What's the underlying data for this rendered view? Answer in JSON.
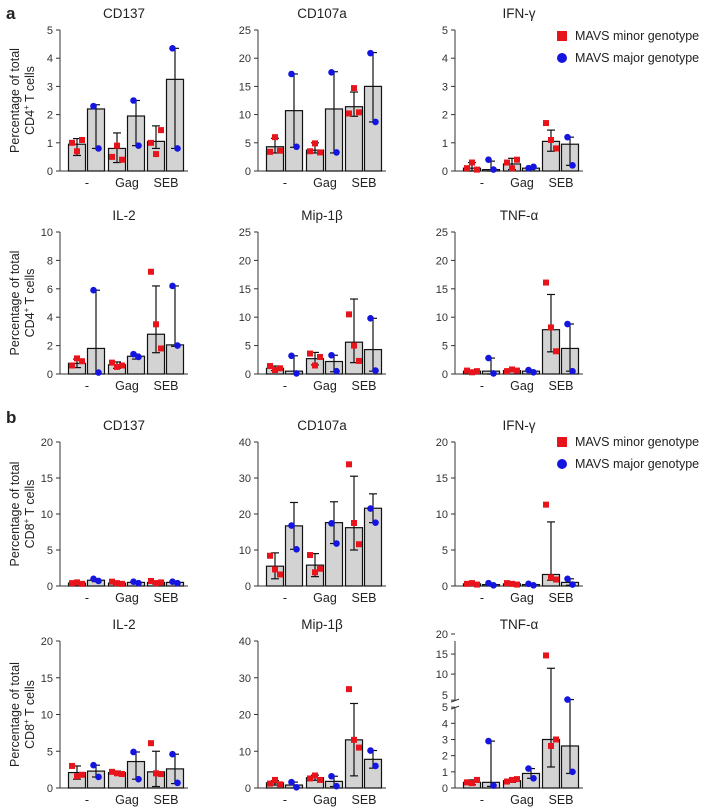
{
  "panel_labels": [
    "a",
    "b"
  ],
  "legend": {
    "minor": "MAVS minor genotype",
    "major": "MAVS major genotype"
  },
  "colors": {
    "minor": "#e8141b",
    "major": "#1416e0",
    "bar": "#d3d3d3",
    "axis": "#333333"
  },
  "chart_data": [
    {
      "type": "bar",
      "section": "a",
      "title": "CD137",
      "ylabel": "Percentage of total CD4+ T cells",
      "categories": [
        "-",
        "Gag",
        "SEB"
      ],
      "ylim": [
        0,
        5
      ],
      "yticks": [
        0,
        1,
        2,
        3,
        4,
        5
      ],
      "series": [
        {
          "name": "MAVS minor genotype",
          "values": [
            0.95,
            0.8,
            1.05
          ],
          "err_hi": [
            1.15,
            1.35,
            1.6
          ],
          "err_lo": [
            0.55,
            0.3,
            0.8
          ],
          "points": [
            [
              1.0,
              0.7,
              1.1
            ],
            [
              0.5,
              0.9,
              0.4
            ],
            [
              1.0,
              0.6,
              1.45
            ]
          ]
        },
        {
          "name": "MAVS major genotype",
          "values": [
            2.2,
            1.95,
            3.25
          ],
          "err_hi": [
            2.35,
            2.5,
            4.35
          ],
          "err_lo": [
            0.8,
            0.9,
            0.8
          ],
          "points": [
            [
              2.3,
              0.8
            ],
            [
              2.5,
              0.9
            ],
            [
              4.35,
              0.8
            ]
          ]
        }
      ]
    },
    {
      "type": "bar",
      "section": "a",
      "title": "CD107a",
      "categories": [
        "-",
        "Gag",
        "SEB"
      ],
      "ylim": [
        0,
        25
      ],
      "yticks": [
        0,
        5,
        10,
        15,
        20,
        25
      ],
      "series": [
        {
          "name": "MAVS minor genotype",
          "values": [
            4.3,
            3.7,
            11.4
          ],
          "err_hi": [
            5.8,
            5.0,
            14.0
          ],
          "err_lo": [
            3.2,
            3.2,
            9.7
          ],
          "points": [
            [
              3.4,
              6.0,
              3.6
            ],
            [
              3.5,
              4.9,
              3.3
            ],
            [
              10.2,
              14.7,
              10.4
            ]
          ]
        },
        {
          "name": "MAVS major genotype",
          "values": [
            10.7,
            11.0,
            15.0
          ],
          "err_hi": [
            17.2,
            17.6,
            21.0
          ],
          "err_lo": [
            4.2,
            3.2,
            8.7
          ],
          "points": [
            [
              17.2,
              4.3
            ],
            [
              17.5,
              3.3
            ],
            [
              20.9,
              8.7
            ]
          ]
        }
      ]
    },
    {
      "type": "bar",
      "section": "a",
      "title": "IFN-γ",
      "categories": [
        "-",
        "Gag",
        "SEB"
      ],
      "ylim": [
        0,
        5
      ],
      "yticks": [
        0,
        1,
        2,
        3,
        4,
        5
      ],
      "series": [
        {
          "name": "MAVS minor genotype",
          "values": [
            0.1,
            0.25,
            1.05
          ],
          "err_hi": [
            0.3,
            0.45,
            1.45
          ],
          "err_lo": [
            0.0,
            0.05,
            0.7
          ],
          "points": [
            [
              0.1,
              0.3,
              0.05
            ],
            [
              0.3,
              0.1,
              0.4
            ],
            [
              1.7,
              1.1,
              0.8
            ]
          ]
        },
        {
          "name": "MAVS major genotype",
          "values": [
            0.05,
            0.1,
            0.95
          ],
          "err_hi": [
            0.35,
            0.15,
            1.2
          ],
          "err_lo": [
            0.0,
            0.05,
            0.2
          ],
          "points": [
            [
              0.4,
              0.05
            ],
            [
              0.1,
              0.15
            ],
            [
              1.2,
              0.2
            ]
          ]
        }
      ]
    },
    {
      "type": "bar",
      "section": "a",
      "title": "IL-2",
      "ylabel": "Percentage of total CD4+ T cells",
      "categories": [
        "-",
        "Gag",
        "SEB"
      ],
      "ylim": [
        0,
        10
      ],
      "yticks": [
        0,
        2,
        4,
        6,
        8,
        10
      ],
      "series": [
        {
          "name": "MAVS minor genotype",
          "values": [
            0.75,
            0.65,
            2.8
          ],
          "err_hi": [
            1.05,
            0.85,
            6.2
          ],
          "err_lo": [
            0.45,
            0.4,
            1.5
          ],
          "points": [
            [
              0.6,
              1.1,
              0.9
            ],
            [
              0.8,
              0.5,
              0.6
            ],
            [
              7.2,
              3.5,
              1.8
            ]
          ]
        },
        {
          "name": "MAVS major genotype",
          "values": [
            1.8,
            1.25,
            2.05
          ],
          "err_hi": [
            5.9,
            1.4,
            6.2
          ],
          "err_lo": [
            0.0,
            1.05,
            1.95
          ],
          "points": [
            [
              5.9,
              0.1
            ],
            [
              1.4,
              1.2
            ],
            [
              6.2,
              2.0
            ]
          ]
        }
      ]
    },
    {
      "type": "bar",
      "section": "a",
      "title": "Mip-1β",
      "categories": [
        "-",
        "Gag",
        "SEB"
      ],
      "ylim": [
        0,
        25
      ],
      "yticks": [
        0,
        5,
        10,
        15,
        20,
        25
      ],
      "series": [
        {
          "name": "MAVS minor genotype",
          "values": [
            1.0,
            2.7,
            5.6
          ],
          "err_hi": [
            1.4,
            3.8,
            13.2
          ],
          "err_lo": [
            0.6,
            1.6,
            2.0
          ],
          "points": [
            [
              1.4,
              0.7,
              1.0
            ],
            [
              3.6,
              1.5,
              3.0
            ],
            [
              10.5,
              5.0,
              2.3
            ]
          ]
        },
        {
          "name": "MAVS major genotype",
          "values": [
            0.5,
            2.2,
            4.3
          ],
          "err_hi": [
            3.2,
            3.3,
            9.8
          ],
          "err_lo": [
            0.0,
            0.4,
            0.5
          ],
          "points": [
            [
              3.2,
              0.1
            ],
            [
              3.3,
              0.5
            ],
            [
              9.8,
              0.6
            ]
          ]
        }
      ]
    },
    {
      "type": "bar",
      "section": "a",
      "title": "TNF-α",
      "categories": [
        "-",
        "Gag",
        "SEB"
      ],
      "ylim": [
        0,
        25
      ],
      "yticks": [
        0,
        5,
        10,
        15,
        20,
        25
      ],
      "series": [
        {
          "name": "MAVS minor genotype",
          "values": [
            0.5,
            0.6,
            7.8
          ],
          "err_hi": [
            0.7,
            0.8,
            14.0
          ],
          "err_lo": [
            0.3,
            0.4,
            3.9
          ],
          "points": [
            [
              0.6,
              0.3,
              0.5
            ],
            [
              0.5,
              0.8,
              0.6
            ],
            [
              16.1,
              8.2,
              4.0
            ]
          ]
        },
        {
          "name": "MAVS major genotype",
          "values": [
            0.5,
            0.5,
            4.5
          ],
          "err_hi": [
            2.8,
            0.7,
            8.8
          ],
          "err_lo": [
            0.0,
            0.3,
            0.5
          ],
          "points": [
            [
              2.8,
              0.1
            ],
            [
              0.7,
              0.3
            ],
            [
              8.8,
              0.5
            ]
          ]
        }
      ]
    },
    {
      "type": "bar",
      "section": "b",
      "title": "CD137",
      "ylabel": "Percentage of total CD8+ T cells",
      "categories": [
        "-",
        "Gag",
        "SEB"
      ],
      "ylim": [
        0,
        20
      ],
      "yticks": [
        0,
        5,
        10,
        15,
        20
      ],
      "series": [
        {
          "name": "MAVS minor genotype",
          "values": [
            0.4,
            0.4,
            0.5
          ],
          "err_hi": [
            0.6,
            0.6,
            0.7
          ],
          "err_lo": [
            0.2,
            0.2,
            0.3
          ],
          "points": [
            [
              0.4,
              0.5,
              0.3
            ],
            [
              0.6,
              0.4,
              0.3
            ],
            [
              0.7,
              0.4,
              0.5
            ]
          ]
        },
        {
          "name": "MAVS major genotype",
          "values": [
            0.8,
            0.5,
            0.5
          ],
          "err_hi": [
            1.0,
            0.6,
            0.6
          ],
          "err_lo": [
            0.6,
            0.4,
            0.4
          ],
          "points": [
            [
              1.0,
              0.7
            ],
            [
              0.6,
              0.4
            ],
            [
              0.6,
              0.4
            ]
          ]
        }
      ]
    },
    {
      "type": "bar",
      "section": "b",
      "title": "CD107a",
      "categories": [
        "-",
        "Gag",
        "SEB"
      ],
      "ylim": [
        0,
        40
      ],
      "yticks": [
        0,
        10,
        20,
        30,
        40
      ],
      "series": [
        {
          "name": "MAVS minor genotype",
          "values": [
            5.5,
            5.8,
            16.2
          ],
          "err_hi": [
            9.2,
            9.0,
            30.5
          ],
          "err_lo": [
            2.0,
            2.6,
            10.0
          ],
          "points": [
            [
              8.4,
              4.6,
              3.2
            ],
            [
              8.6,
              3.8,
              4.8
            ],
            [
              33.8,
              17.5,
              11.6
            ]
          ]
        },
        {
          "name": "MAVS major genotype",
          "values": [
            16.7,
            17.6,
            21.6
          ],
          "err_hi": [
            23.2,
            23.4,
            25.6
          ],
          "err_lo": [
            10.2,
            11.8,
            17.6
          ],
          "points": [
            [
              16.8,
              10.2
            ],
            [
              17.4,
              11.8
            ],
            [
              21.5,
              17.6
            ]
          ]
        }
      ]
    },
    {
      "type": "bar",
      "section": "b",
      "title": "IFN-γ",
      "categories": [
        "-",
        "Gag",
        "SEB"
      ],
      "ylim": [
        0,
        20
      ],
      "yticks": [
        0,
        5,
        10,
        15,
        20
      ],
      "series": [
        {
          "name": "MAVS minor genotype",
          "values": [
            0.3,
            0.3,
            1.6
          ],
          "err_hi": [
            0.4,
            0.4,
            8.9
          ],
          "err_lo": [
            0.2,
            0.2,
            0.8
          ],
          "points": [
            [
              0.3,
              0.4,
              0.2
            ],
            [
              0.4,
              0.3,
              0.2
            ],
            [
              11.3,
              1.2,
              0.9
            ]
          ]
        },
        {
          "name": "MAVS major genotype",
          "values": [
            0.2,
            0.2,
            0.5
          ],
          "err_hi": [
            0.4,
            0.3,
            1.0
          ],
          "err_lo": [
            0.0,
            0.1,
            0.1
          ],
          "points": [
            [
              0.4,
              0.1
            ],
            [
              0.3,
              0.1
            ],
            [
              1.0,
              0.2
            ]
          ]
        }
      ]
    },
    {
      "type": "bar",
      "section": "b",
      "title": "IL-2",
      "ylabel": "Percentage of total CD8+ T cells",
      "categories": [
        "-",
        "Gag",
        "SEB"
      ],
      "ylim": [
        0,
        20
      ],
      "yticks": [
        0,
        5,
        10,
        15,
        20
      ],
      "series": [
        {
          "name": "MAVS minor genotype",
          "values": [
            2.1,
            2.1,
            2.2
          ],
          "err_hi": [
            3.0,
            2.3,
            5.0
          ],
          "err_lo": [
            1.2,
            1.9,
            0.2
          ],
          "points": [
            [
              3.0,
              1.6,
              1.8
            ],
            [
              2.2,
              2.0,
              1.9
            ],
            [
              6.1,
              2.0,
              1.9
            ]
          ]
        },
        {
          "name": "MAVS major genotype",
          "values": [
            2.3,
            3.6,
            2.6
          ],
          "err_hi": [
            3.1,
            4.9,
            4.6
          ],
          "err_lo": [
            1.5,
            1.2,
            0.6
          ],
          "points": [
            [
              3.1,
              1.5
            ],
            [
              4.9,
              1.2
            ],
            [
              4.6,
              0.7
            ]
          ]
        }
      ]
    },
    {
      "type": "bar",
      "section": "b",
      "title": "Mip-1β",
      "categories": [
        "-",
        "Gag",
        "SEB"
      ],
      "ylim": [
        0,
        40
      ],
      "yticks": [
        0,
        10,
        20,
        30,
        40
      ],
      "series": [
        {
          "name": "MAVS minor genotype",
          "values": [
            1.4,
            2.8,
            13.1
          ],
          "err_hi": [
            2.0,
            3.5,
            23.0
          ],
          "err_lo": [
            0.8,
            2.1,
            3.3
          ],
          "points": [
            [
              1.2,
              2.2,
              1.0
            ],
            [
              2.6,
              3.4,
              2.2
            ],
            [
              26.9,
              13.1,
              11.0
            ]
          ]
        },
        {
          "name": "MAVS major genotype",
          "values": [
            0.8,
            1.8,
            7.8
          ],
          "err_hi": [
            1.6,
            3.2,
            10.2
          ],
          "err_lo": [
            0.0,
            0.4,
            5.4
          ],
          "points": [
            [
              1.6,
              0.2
            ],
            [
              3.2,
              0.5
            ],
            [
              10.2,
              6.0
            ]
          ]
        }
      ]
    },
    {
      "type": "bar",
      "section": "b",
      "title": "TNF-α",
      "categories": [
        "-",
        "Gag",
        "SEB"
      ],
      "ylim": [
        0,
        20
      ],
      "yticks": [
        0,
        1,
        2,
        3,
        4,
        5,
        10,
        15,
        20
      ],
      "axis_break": [
        5,
        5
      ],
      "series": [
        {
          "name": "MAVS minor genotype",
          "values": [
            0.35,
            0.45,
            3.0
          ],
          "err_hi": [
            0.5,
            0.55,
            13.2
          ],
          "err_lo": [
            0.2,
            0.35,
            1.3
          ],
          "points": [
            [
              0.35,
              0.3,
              0.5
            ],
            [
              0.4,
              0.5,
              0.55
            ],
            [
              16.4,
              2.6,
              3.0
            ]
          ]
        },
        {
          "name": "MAVS major genotype",
          "values": [
            0.35,
            0.9,
            2.6
          ],
          "err_hi": [
            2.9,
            1.2,
            5.4
          ],
          "err_lo": [
            0.1,
            0.6,
            0.9
          ],
          "points": [
            [
              2.9,
              0.15
            ],
            [
              1.2,
              0.6
            ],
            [
              5.4,
              1.0
            ]
          ]
        }
      ]
    }
  ]
}
